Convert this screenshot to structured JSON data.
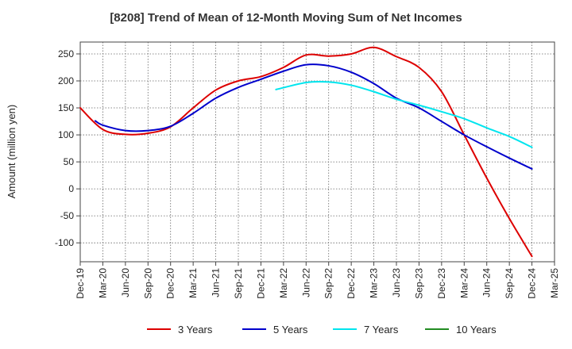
{
  "chart_data": {
    "type": "line",
    "title": "[8208]  Trend of Mean of 12-Month Moving Sum of Net Incomes",
    "ylabel": "Amount (million yen)",
    "xlabel": "",
    "ylim": [
      -135,
      272
    ],
    "yticks": [
      250,
      200,
      150,
      100,
      50,
      0,
      -50,
      -100
    ],
    "xticks": [
      "Dec-19",
      "Mar-20",
      "Jun-20",
      "Sep-20",
      "Dec-20",
      "Mar-21",
      "Jun-21",
      "Sep-21",
      "Dec-21",
      "Mar-22",
      "Jun-22",
      "Sep-22",
      "Dec-22",
      "Mar-23",
      "Jun-23",
      "Sep-23",
      "Dec-23",
      "Mar-24",
      "Jun-24",
      "Sep-24",
      "Dec-24",
      "Mar-25"
    ],
    "grid": true,
    "legend_position": "bottom",
    "series": [
      {
        "name": "3 Years",
        "color": "#dd0000",
        "points": [
          [
            "Dec-19",
            150
          ],
          [
            "Mar-20",
            110
          ],
          [
            "Jun-20",
            101
          ],
          [
            "Sep-20",
            103
          ],
          [
            "Dec-20",
            115
          ],
          [
            "Mar-21",
            150
          ],
          [
            "Jun-21",
            183
          ],
          [
            "Sep-21",
            200
          ],
          [
            "Dec-21",
            208
          ],
          [
            "Mar-22",
            225
          ],
          [
            "Jun-22",
            248
          ],
          [
            "Sep-22",
            246
          ],
          [
            "Dec-22",
            250
          ],
          [
            "Mar-23",
            262
          ],
          [
            "Jun-23",
            245
          ],
          [
            "Sep-23",
            225
          ],
          [
            "Dec-23",
            180
          ],
          [
            "Mar-24",
            100
          ],
          [
            "Jun-24",
            20
          ],
          [
            "Sep-24",
            -55
          ],
          [
            "Dec-24",
            -125
          ]
        ]
      },
      {
        "name": "5 Years",
        "color": "#0000cc",
        "points": [
          [
            "Feb-20",
            126
          ],
          [
            "Mar-20",
            118
          ],
          [
            "Jun-20",
            108
          ],
          [
            "Sep-20",
            108
          ],
          [
            "Dec-20",
            116
          ],
          [
            "Mar-21",
            140
          ],
          [
            "Jun-21",
            168
          ],
          [
            "Sep-21",
            188
          ],
          [
            "Dec-21",
            203
          ],
          [
            "Mar-22",
            218
          ],
          [
            "Jun-22",
            230
          ],
          [
            "Sep-22",
            228
          ],
          [
            "Dec-22",
            216
          ],
          [
            "Mar-23",
            195
          ],
          [
            "Jun-23",
            168
          ],
          [
            "Sep-23",
            150
          ],
          [
            "Dec-23",
            125
          ],
          [
            "Mar-24",
            100
          ],
          [
            "Jun-24",
            78
          ],
          [
            "Sep-24",
            57
          ],
          [
            "Dec-24",
            37
          ]
        ]
      },
      {
        "name": "7 Years",
        "color": "#00e5ee",
        "points": [
          [
            "Feb-22",
            184
          ],
          [
            "Jun-22",
            197
          ],
          [
            "Sep-22",
            198
          ],
          [
            "Dec-22",
            192
          ],
          [
            "Mar-23",
            180
          ],
          [
            "Jun-23",
            166
          ],
          [
            "Sep-23",
            155
          ],
          [
            "Dec-23",
            143
          ],
          [
            "Mar-24",
            130
          ],
          [
            "Jun-24",
            113
          ],
          [
            "Sep-24",
            97
          ],
          [
            "Dec-24",
            77
          ]
        ]
      },
      {
        "name": "10 Years",
        "color": "#228b22",
        "points": []
      }
    ]
  }
}
